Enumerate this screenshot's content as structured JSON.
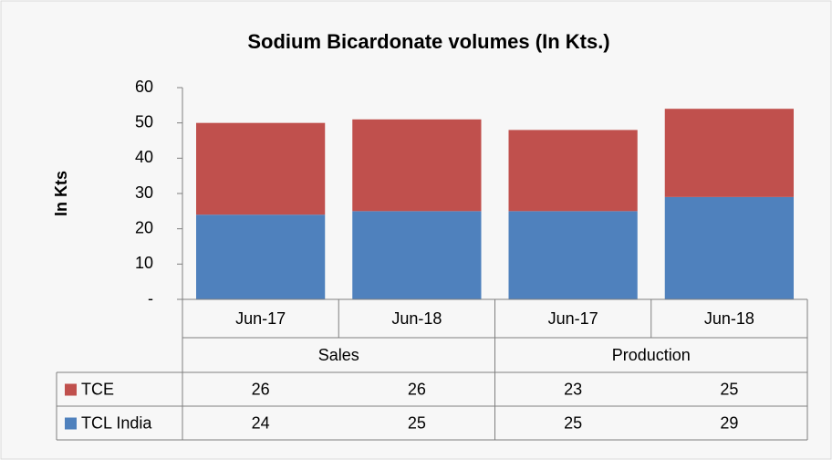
{
  "chart_data": {
    "type": "stacked-bar",
    "title": "Sodium Bicardonate volumes (In Kts.)",
    "y_label": "In Kts",
    "groups": [
      {
        "name": "Sales",
        "categories": [
          "Jun-17",
          "Jun-18"
        ]
      },
      {
        "name": "Production",
        "categories": [
          "Jun-17",
          "Jun-18"
        ]
      }
    ],
    "series": [
      {
        "name": "TCL India",
        "color": "#4f81bd",
        "values": [
          24,
          25,
          25,
          29
        ]
      },
      {
        "name": "TCE",
        "color": "#c0504d",
        "values": [
          26,
          26,
          23,
          25
        ]
      }
    ],
    "ylim": [
      0,
      60
    ],
    "yticks": [
      {
        "value": 0,
        "label": "-"
      },
      10,
      20,
      30,
      40,
      50,
      60
    ]
  }
}
